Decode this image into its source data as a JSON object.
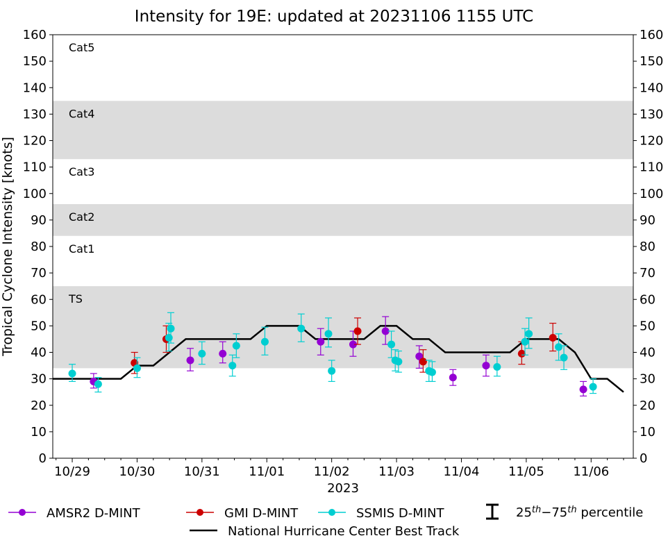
{
  "chart_data": {
    "type": "scatter",
    "title": "Intensity for 19E: updated at 20231106 1155 UTC",
    "xlabel": "2023",
    "ylabel": "Tropical Cyclone Intensity [knots]",
    "ylim": [
      0,
      160
    ],
    "xlim": [
      -0.3,
      8.65
    ],
    "yticks": [
      0,
      10,
      20,
      30,
      40,
      50,
      60,
      70,
      80,
      90,
      100,
      110,
      120,
      130,
      140,
      150,
      160
    ],
    "xticks": [
      {
        "x": 0,
        "label": "10/29"
      },
      {
        "x": 1,
        "label": "10/30"
      },
      {
        "x": 2,
        "label": "10/31"
      },
      {
        "x": 3,
        "label": "11/01"
      },
      {
        "x": 4,
        "label": "11/02"
      },
      {
        "x": 5,
        "label": "11/03"
      },
      {
        "x": 6,
        "label": "11/04"
      },
      {
        "x": 7,
        "label": "11/05"
      },
      {
        "x": 8,
        "label": "11/06"
      }
    ],
    "x_unit": "days since 10/29 00 UTC",
    "bands": [
      {
        "label": "TS",
        "from": 34,
        "to": 65,
        "shaded": true
      },
      {
        "label": "Cat1",
        "from": 65,
        "to": 84,
        "shaded": false
      },
      {
        "label": "Cat2",
        "from": 84,
        "to": 96,
        "shaded": true
      },
      {
        "label": "Cat3",
        "from": 96,
        "to": 113,
        "shaded": false
      },
      {
        "label": "Cat4",
        "from": 113,
        "to": 135,
        "shaded": true
      },
      {
        "label": "Cat5",
        "from": 135,
        "to": 160,
        "shaded": false
      }
    ],
    "best_track": {
      "name": "National Hurricane Center Best Track",
      "color": "#000000",
      "x": [
        -0.3,
        0.75,
        1.0,
        1.25,
        1.5,
        1.75,
        2.0,
        2.25,
        2.5,
        2.75,
        3.0,
        3.25,
        3.5,
        3.75,
        4.0,
        4.25,
        4.5,
        4.75,
        5.0,
        5.25,
        5.5,
        5.75,
        6.0,
        6.25,
        6.5,
        6.75,
        7.0,
        7.25,
        7.5,
        7.75,
        8.0,
        8.25,
        8.5
      ],
      "y": [
        30,
        30,
        35,
        35,
        40,
        45,
        45,
        45,
        45,
        45,
        50,
        50,
        50,
        45,
        45,
        45,
        45,
        50,
        50,
        45,
        45,
        40,
        40,
        40,
        40,
        40,
        45,
        45,
        45,
        40,
        30,
        30,
        25
      ]
    },
    "series": [
      {
        "name": "AMSR2 D-MINT",
        "color": "#9400d3",
        "points": [
          {
            "x": 0.33,
            "y": 29,
            "lo": 26.5,
            "hi": 32
          },
          {
            "x": 1.82,
            "y": 37,
            "lo": 33,
            "hi": 41.5
          },
          {
            "x": 2.32,
            "y": 39.5,
            "lo": 36,
            "hi": 44
          },
          {
            "x": 3.83,
            "y": 44,
            "lo": 39,
            "hi": 49
          },
          {
            "x": 4.33,
            "y": 43,
            "lo": 38.5,
            "hi": 48
          },
          {
            "x": 4.83,
            "y": 48,
            "lo": 43,
            "hi": 53.5
          },
          {
            "x": 5.35,
            "y": 38.5,
            "lo": 34,
            "hi": 42.5
          },
          {
            "x": 5.87,
            "y": 30.5,
            "lo": 27.5,
            "hi": 33.5
          },
          {
            "x": 6.38,
            "y": 35,
            "lo": 31,
            "hi": 39
          },
          {
            "x": 7.88,
            "y": 26,
            "lo": 23.5,
            "hi": 29
          }
        ]
      },
      {
        "name": "GMI D-MINT",
        "color": "#cc0000",
        "points": [
          {
            "x": 0.96,
            "y": 36,
            "lo": 32,
            "hi": 40
          },
          {
            "x": 1.45,
            "y": 45,
            "lo": 40,
            "hi": 50
          },
          {
            "x": 4.4,
            "y": 48,
            "lo": 43,
            "hi": 53
          },
          {
            "x": 5.41,
            "y": 36.5,
            "lo": 32.5,
            "hi": 41
          },
          {
            "x": 6.93,
            "y": 39.5,
            "lo": 35.5,
            "hi": 44
          },
          {
            "x": 7.41,
            "y": 45.5,
            "lo": 40.5,
            "hi": 51
          }
        ]
      },
      {
        "name": "SSMIS D-MINT",
        "color": "#00ced1",
        "points": [
          {
            "x": 0.0,
            "y": 32,
            "lo": 29,
            "hi": 35.5
          },
          {
            "x": 0.4,
            "y": 28,
            "lo": 25,
            "hi": 30.5
          },
          {
            "x": 1.0,
            "y": 34,
            "lo": 30.5,
            "hi": 38
          },
          {
            "x": 1.49,
            "y": 45.5,
            "lo": 40.5,
            "hi": 51
          },
          {
            "x": 1.52,
            "y": 49,
            "lo": 43.5,
            "hi": 55
          },
          {
            "x": 2.0,
            "y": 39.5,
            "lo": 35.5,
            "hi": 44
          },
          {
            "x": 2.47,
            "y": 35,
            "lo": 31,
            "hi": 39
          },
          {
            "x": 2.53,
            "y": 42.5,
            "lo": 38,
            "hi": 47
          },
          {
            "x": 2.97,
            "y": 44,
            "lo": 39,
            "hi": 49.5
          },
          {
            "x": 3.53,
            "y": 49,
            "lo": 44,
            "hi": 54.5
          },
          {
            "x": 3.95,
            "y": 47,
            "lo": 42,
            "hi": 53
          },
          {
            "x": 4.0,
            "y": 33,
            "lo": 29,
            "hi": 37
          },
          {
            "x": 4.92,
            "y": 43,
            "lo": 38,
            "hi": 48
          },
          {
            "x": 4.98,
            "y": 37,
            "lo": 33,
            "hi": 41
          },
          {
            "x": 5.03,
            "y": 36.5,
            "lo": 32.5,
            "hi": 40.5
          },
          {
            "x": 5.5,
            "y": 33,
            "lo": 29,
            "hi": 37
          },
          {
            "x": 5.55,
            "y": 32.5,
            "lo": 29,
            "hi": 36.5
          },
          {
            "x": 6.55,
            "y": 34.5,
            "lo": 31,
            "hi": 38.5
          },
          {
            "x": 6.98,
            "y": 44,
            "lo": 39,
            "hi": 49
          },
          {
            "x": 7.04,
            "y": 47,
            "lo": 41.5,
            "hi": 53
          },
          {
            "x": 7.5,
            "y": 42,
            "lo": 37,
            "hi": 47
          },
          {
            "x": 7.58,
            "y": 38,
            "lo": 33.5,
            "hi": 42.5
          },
          {
            "x": 8.03,
            "y": 27,
            "lo": 24.5,
            "hi": 30
          }
        ]
      }
    ],
    "legend": {
      "placement": "bottom",
      "entries": [
        "AMSR2 D-MINT",
        "GMI D-MINT",
        "SSMIS D-MINT"
      ],
      "percentile_prefix": "25",
      "percentile_mid": "−",
      "percentile_second": "75",
      "percentile_suffix_sup": "th",
      "percentile_word": "percentile",
      "best_track_label": "National Hurricane Center Best Track"
    }
  }
}
